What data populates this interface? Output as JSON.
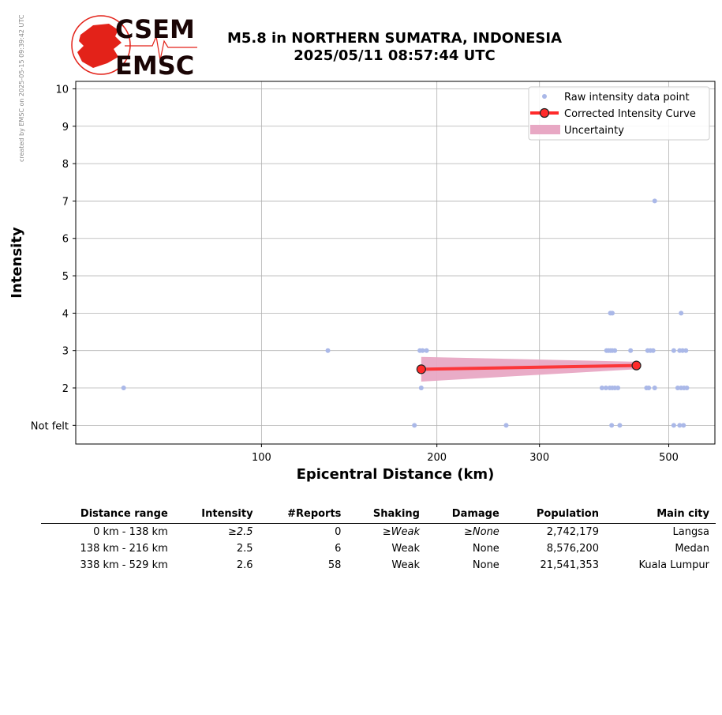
{
  "credit": "created by EMSC on 2025-05-15 09:39:42 UTC",
  "logo": {
    "top": "CSEM",
    "bottom": "EMSC",
    "accent": "#e32219"
  },
  "title": {
    "line1": "M5.8 in NORTHERN SUMATRA, INDONESIA",
    "line2": "2025/05/11 08:57:44 UTC"
  },
  "chart_data": {
    "type": "scatter",
    "xlabel": "Epicentral Distance (km)",
    "ylabel": "Intensity",
    "xscale": "log",
    "xlim": [
      48,
      600
    ],
    "ylim": [
      0.5,
      10.2
    ],
    "xticks": [
      100,
      200,
      300,
      500
    ],
    "yticks": [
      {
        "v": 1,
        "label": "Not felt"
      },
      {
        "v": 2,
        "label": "2"
      },
      {
        "v": 3,
        "label": "3"
      },
      {
        "v": 4,
        "label": "4"
      },
      {
        "v": 5,
        "label": "5"
      },
      {
        "v": 6,
        "label": "6"
      },
      {
        "v": 7,
        "label": "7"
      },
      {
        "v": 8,
        "label": "8"
      },
      {
        "v": 9,
        "label": "9"
      },
      {
        "v": 10,
        "label": "10"
      }
    ],
    "grid": true,
    "legend_position": "top-right",
    "series": [
      {
        "name": "Raw intensity data point",
        "color": "#aab8e8",
        "points": [
          [
            58,
            2
          ],
          [
            130,
            3
          ],
          [
            187,
            3
          ],
          [
            189,
            3
          ],
          [
            192,
            3
          ],
          [
            188,
            2
          ],
          [
            183,
            1
          ],
          [
            263,
            1
          ],
          [
            391,
            3
          ],
          [
            394,
            3
          ],
          [
            397,
            3
          ],
          [
            400,
            3
          ],
          [
            404,
            3
          ],
          [
            397,
            4
          ],
          [
            400,
            4
          ],
          [
            384,
            2
          ],
          [
            390,
            2
          ],
          [
            396,
            2
          ],
          [
            400,
            2
          ],
          [
            404,
            2
          ],
          [
            409,
            2
          ],
          [
            399,
            1
          ],
          [
            412,
            1
          ],
          [
            430,
            3
          ],
          [
            460,
            3
          ],
          [
            465,
            3
          ],
          [
            470,
            3
          ],
          [
            458,
            2
          ],
          [
            462,
            2
          ],
          [
            473,
            2
          ],
          [
            473,
            7
          ],
          [
            510,
            3
          ],
          [
            522,
            3
          ],
          [
            528,
            3
          ],
          [
            535,
            3
          ],
          [
            525,
            4
          ],
          [
            518,
            2
          ],
          [
            525,
            2
          ],
          [
            531,
            2
          ],
          [
            537,
            2
          ],
          [
            510,
            1
          ],
          [
            522,
            1
          ],
          [
            530,
            1
          ]
        ]
      },
      {
        "name": "Corrected Intensity Curve",
        "color": "#ff2a2a",
        "points": [
          [
            188,
            2.5
          ],
          [
            440,
            2.6
          ]
        ]
      },
      {
        "name": "Uncertainty",
        "color": "#e8a8c4",
        "band": [
          [
            188,
            2.17,
            2.83
          ],
          [
            440,
            2.5,
            2.7
          ]
        ]
      }
    ]
  },
  "table": {
    "headers": [
      "Distance range",
      "Intensity",
      "#Reports",
      "Shaking",
      "Damage",
      "Population",
      "Main city"
    ],
    "rows": [
      [
        "0 km -  138 km",
        "≥2.5",
        "0",
        "≥Weak",
        "≥None",
        "2,742,179",
        "Langsa"
      ],
      [
        "138 km -  216 km",
        "2.5",
        "6",
        "Weak",
        "None",
        "8,576,200",
        "Medan"
      ],
      [
        "338 km -  529 km",
        "2.6",
        "58",
        "Weak",
        "None",
        "21,541,353",
        "Kuala Lumpur"
      ]
    ]
  }
}
